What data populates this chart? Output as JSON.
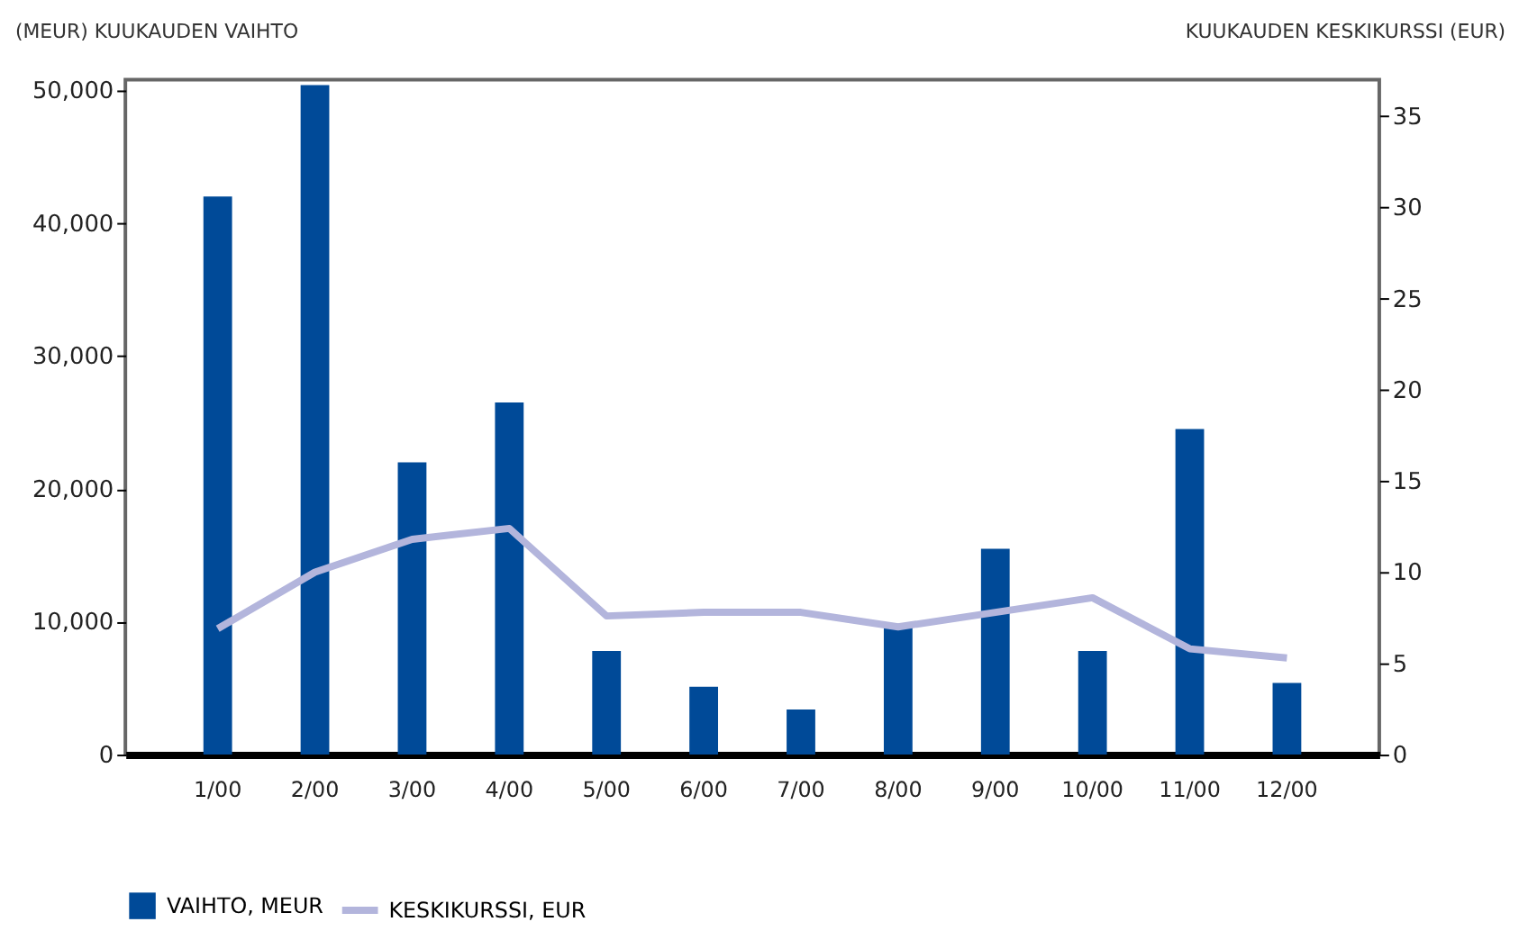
{
  "chart_data": {
    "type": "bar",
    "ylabel": "(MEUR) KUUKAUDEN VAIHTO",
    "y2label": "KUUKAUDEN KESKIKURSSI (EUR)",
    "categories": [
      "1/00",
      "2/00",
      "3/00",
      "4/00",
      "5/00",
      "6/00",
      "7/00",
      "8/00",
      "9/00",
      "10/00",
      "11/00",
      "12/00"
    ],
    "series": [
      {
        "name": "VAIHTO, MEUR",
        "color": "#004a98",
        "type": "bar",
        "values": [
          42000,
          50400,
          22000,
          26500,
          7800,
          5100,
          3400,
          9700,
          15500,
          7800,
          24500,
          5400
        ]
      },
      {
        "name": "KESKIKURSSI, EUR",
        "color": "#b3b5dc",
        "type": "line",
        "axis": "y2",
        "values": [
          6.9,
          10.0,
          11.8,
          12.4,
          7.6,
          7.8,
          7.8,
          7.0,
          7.8,
          8.6,
          5.8,
          5.3
        ]
      }
    ],
    "ylim": [
      0,
      50800
    ],
    "yticks": [
      0,
      {
        "value": 10000,
        "label": "10,000"
      },
      {
        "value": 20000,
        "label": "20,000"
      },
      {
        "value": 30000,
        "label": "30,000"
      },
      {
        "value": 40000,
        "label": "40,000"
      },
      {
        "value": 50000,
        "label": "50,000"
      }
    ],
    "y2lim": [
      0,
      37
    ],
    "y2ticks": [
      0,
      5,
      10,
      15,
      20,
      25,
      30,
      35
    ],
    "legend": "bottom",
    "grid": false
  }
}
